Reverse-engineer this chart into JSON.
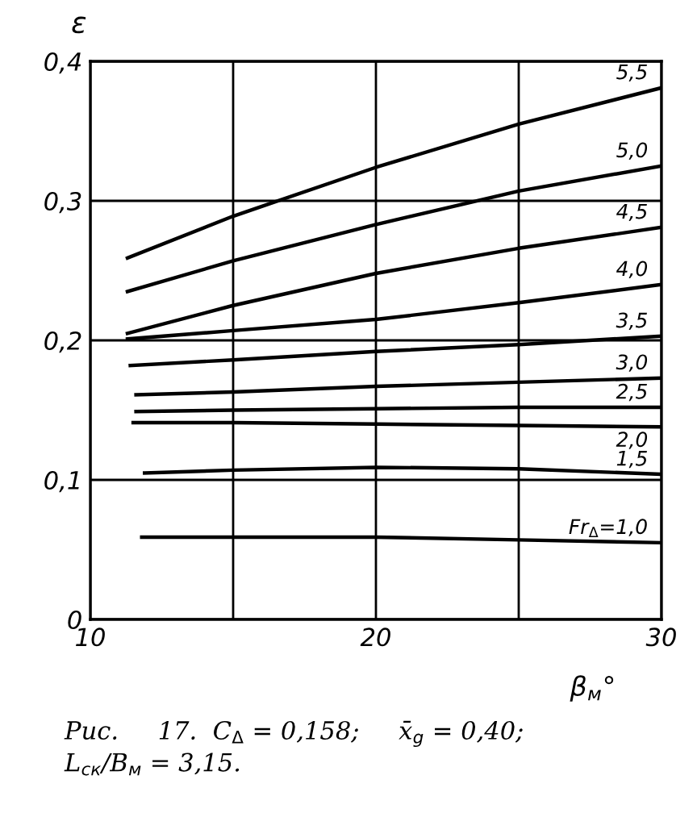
{
  "chart_data": {
    "type": "line",
    "ylabel": "ε",
    "xlabel": "β$_{м}$°",
    "xlim": [
      10,
      30
    ],
    "ylim": [
      0,
      0.4
    ],
    "xticks": [
      10,
      {
        "value": 15,
        "label": null
      },
      20,
      {
        "value": 25,
        "label": null
      },
      30
    ],
    "yticks": [
      0,
      {
        "value": 0.1,
        "label": "0,1"
      },
      {
        "value": 0.2,
        "label": "0,2"
      },
      {
        "value": 0.3,
        "label": "0,3"
      },
      {
        "value": 0.4,
        "label": "0,4"
      }
    ],
    "grid": true,
    "legend": false,
    "marker": "none",
    "line_style": "solid",
    "series": [
      {
        "name": "5,5",
        "color": "#000000",
        "x": [
          11.3,
          15,
          20,
          25,
          30
        ],
        "values": [
          0.259,
          0.289,
          0.324,
          0.355,
          0.381
        ]
      },
      {
        "name": "5,0",
        "color": "#000000",
        "x": [
          11.3,
          15,
          20,
          25,
          30
        ],
        "values": [
          0.235,
          0.257,
          0.283,
          0.307,
          0.325
        ]
      },
      {
        "name": "4,5",
        "color": "#000000",
        "x": [
          11.3,
          15,
          20,
          25,
          30
        ],
        "values": [
          0.205,
          0.225,
          0.248,
          0.266,
          0.281
        ]
      },
      {
        "name": "4,0",
        "color": "#000000",
        "x": [
          11.3,
          15,
          20,
          25,
          30
        ],
        "values": [
          0.201,
          0.207,
          0.215,
          0.227,
          0.24
        ]
      },
      {
        "name": "3,5",
        "color": "#000000",
        "x": [
          11.4,
          15,
          20,
          25,
          30
        ],
        "values": [
          0.182,
          0.186,
          0.192,
          0.197,
          0.203
        ]
      },
      {
        "name": "3,0",
        "color": "#000000",
        "x": [
          11.6,
          15,
          20,
          25,
          30
        ],
        "values": [
          0.161,
          0.163,
          0.167,
          0.17,
          0.173
        ]
      },
      {
        "name": "2,5",
        "color": "#000000",
        "x": [
          11.6,
          15,
          20,
          25,
          30
        ],
        "values": [
          0.149,
          0.15,
          0.151,
          0.152,
          0.152
        ]
      },
      {
        "name": "2,0",
        "color": "#000000",
        "x": [
          11.5,
          15,
          20,
          25,
          30
        ],
        "values": [
          0.141,
          0.141,
          0.14,
          0.139,
          0.138
        ]
      },
      {
        "name": "1,5",
        "color": "#000000",
        "x": [
          11.9,
          15,
          20,
          25,
          30
        ],
        "values": [
          0.105,
          0.107,
          0.109,
          0.108,
          0.104
        ]
      },
      {
        "name": "Fr$_{Δ}$=1,0",
        "color": "#000000",
        "x": [
          11.8,
          15,
          20,
          25,
          30
        ],
        "values": [
          0.059,
          0.059,
          0.059,
          0.057,
          0.055
        ]
      }
    ],
    "annotations": [
      "Рис.     17.  C$_{Δ}$ = 0,158;     x̄$_{g}$ = 0,40;",
      "L$_{ск}$/B$_{м}$ = 3,15."
    ]
  }
}
